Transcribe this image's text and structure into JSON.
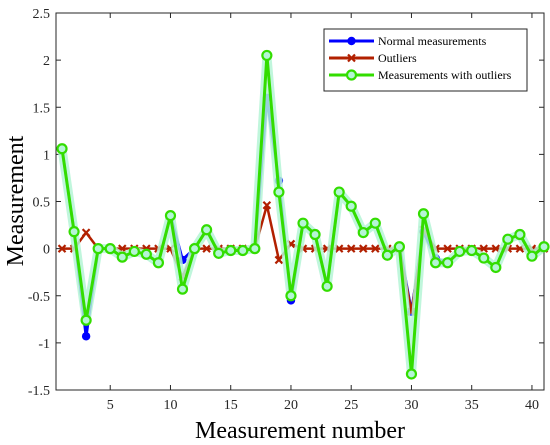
{
  "chart_data": {
    "type": "line",
    "title": "",
    "xlabel": "Measurement number",
    "ylabel": "Measurement",
    "xlim": [
      0.5,
      41
    ],
    "ylim": [
      -1.5,
      2.5
    ],
    "xticks": [
      5,
      10,
      15,
      20,
      25,
      30,
      35,
      40
    ],
    "yticks": [
      -1.5,
      -1,
      -0.5,
      0,
      0.5,
      1,
      1.5,
      2,
      2.5
    ],
    "ytick_labels": [
      "-1.5",
      "-1",
      "-0.5",
      "0",
      "0.5",
      "1",
      "1.5",
      "2",
      "2.5"
    ],
    "grid": false,
    "legend_position": "top-right",
    "x": [
      1,
      2,
      3,
      4,
      5,
      6,
      7,
      8,
      9,
      10,
      11,
      12,
      13,
      14,
      15,
      16,
      17,
      18,
      19,
      20,
      21,
      22,
      23,
      24,
      25,
      26,
      27,
      28,
      29,
      30,
      31,
      32,
      33,
      34,
      35,
      36,
      37,
      38,
      39,
      40,
      41
    ],
    "series": [
      {
        "name": "Normal measurements",
        "color": "#0000ff",
        "marker": "circle",
        "values": [
          1.06,
          0.18,
          -0.93,
          0.0,
          0.0,
          -0.09,
          -0.03,
          -0.06,
          -0.15,
          0.35,
          -0.12,
          0.0,
          0.2,
          -0.05,
          -0.02,
          -0.02,
          0.0,
          1.6,
          0.72,
          -0.55,
          0.27,
          0.15,
          -0.4,
          0.6,
          0.45,
          0.17,
          0.27,
          -0.07,
          0.02,
          -0.67,
          0.18,
          -0.1,
          -0.15,
          -0.03,
          -0.02,
          -0.1,
          -0.2,
          0.1,
          0.15,
          -0.08,
          0.02
        ]
      },
      {
        "name": "Outliers",
        "color": "#b22000",
        "marker": "x",
        "values": [
          0.0,
          0.0,
          0.17,
          0.0,
          0.0,
          0.0,
          0.0,
          0.0,
          0.0,
          0.0,
          -0.3,
          0.0,
          0.0,
          0.0,
          0.0,
          0.0,
          0.0,
          0.46,
          -0.12,
          0.05,
          0.0,
          0.0,
          0.0,
          0.0,
          0.0,
          0.0,
          0.0,
          0.0,
          0.0,
          -0.67,
          0.2,
          0.0,
          0.0,
          0.0,
          0.0,
          0.0,
          0.0,
          0.0,
          0.0,
          0.0,
          0.0
        ]
      },
      {
        "name": "Measurements with outliers",
        "color": "#33dd00",
        "marker": "circle",
        "values": [
          1.06,
          0.18,
          -0.76,
          0.0,
          0.0,
          -0.09,
          -0.03,
          -0.06,
          -0.15,
          0.35,
          -0.43,
          0.0,
          0.2,
          -0.05,
          -0.02,
          -0.02,
          0.0,
          2.05,
          0.6,
          -0.5,
          0.27,
          0.15,
          -0.4,
          0.6,
          0.45,
          0.17,
          0.27,
          -0.07,
          0.02,
          -1.33,
          0.37,
          -0.15,
          -0.15,
          -0.03,
          -0.02,
          -0.1,
          -0.2,
          0.1,
          0.15,
          -0.08,
          0.02
        ]
      }
    ]
  }
}
